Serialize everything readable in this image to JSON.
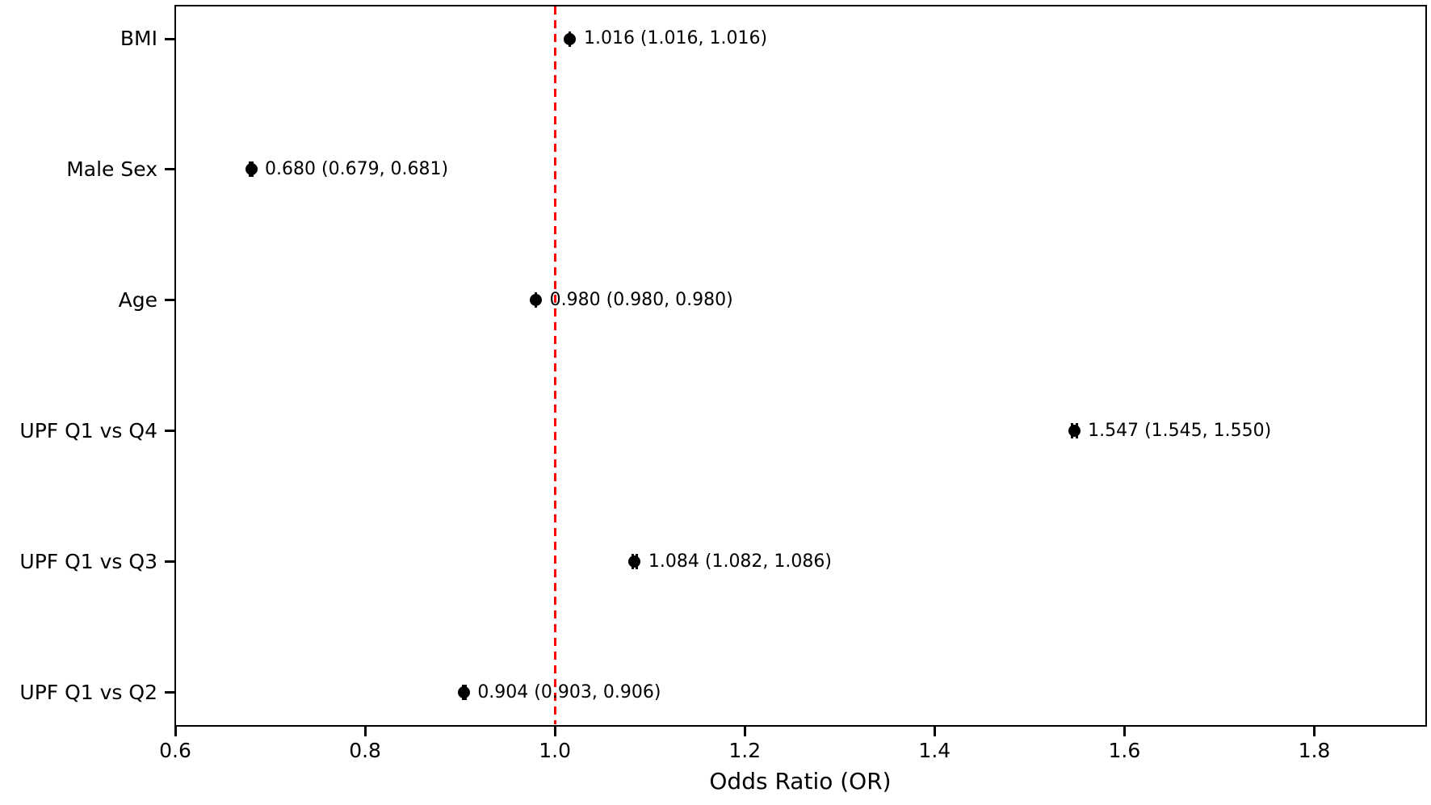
{
  "figure": {
    "background": "#ffffff",
    "marker_color": "#000000",
    "axis_color": "#000000"
  },
  "chart_data": {
    "type": "scatter",
    "subtype": "forest-plot",
    "title": "",
    "xlabel": "Odds Ratio (OR)",
    "ylabel": "",
    "xlim": [
      0.6,
      1.917
    ],
    "xticks": [
      "0.6",
      "0.8",
      "1.0",
      "1.2",
      "1.4",
      "1.6",
      "1.8"
    ],
    "grid": false,
    "legend": null,
    "reference_line": {
      "x": 1.0,
      "color": "#ff0000",
      "style": "dashed"
    },
    "rows": [
      {
        "category": "BMI",
        "or": 1.016,
        "ci_low": 1.016,
        "ci_high": 1.016,
        "label": "1.016 (1.016, 1.016)"
      },
      {
        "category": "Male Sex",
        "or": 0.68,
        "ci_low": 0.679,
        "ci_high": 0.681,
        "label": "0.680 (0.679, 0.681)"
      },
      {
        "category": "Age",
        "or": 0.98,
        "ci_low": 0.98,
        "ci_high": 0.98,
        "label": "0.980 (0.980, 0.980)"
      },
      {
        "category": "UPF Q1 vs Q4",
        "or": 1.547,
        "ci_low": 1.545,
        "ci_high": 1.55,
        "label": "1.547 (1.545, 1.550)"
      },
      {
        "category": "UPF Q1 vs Q3",
        "or": 1.084,
        "ci_low": 1.082,
        "ci_high": 1.086,
        "label": "1.084 (1.082, 1.086)"
      },
      {
        "category": "UPF Q1 vs Q2",
        "or": 0.904,
        "ci_low": 0.903,
        "ci_high": 0.906,
        "label": "0.904 (0.903, 0.906)"
      }
    ]
  }
}
